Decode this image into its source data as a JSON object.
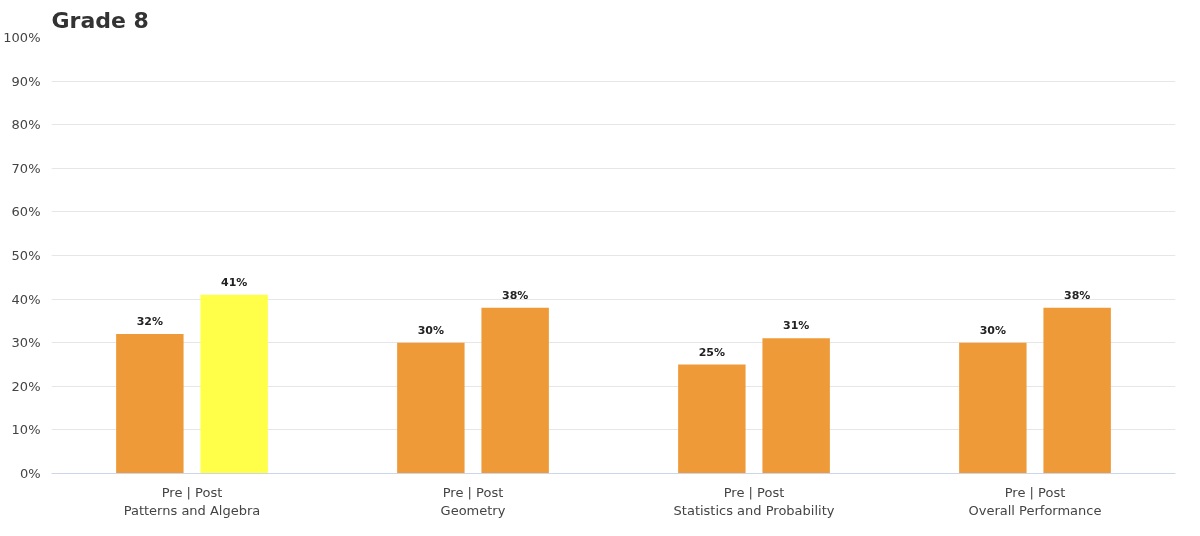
{
  "chart_data": {
    "type": "bar",
    "title": "Grade 8",
    "categories": [
      "Pre | Post\nPatterns and Algebra",
      "Pre | Post\nGeometry",
      "Pre | Post\nStatistics and Probability",
      "Pre | Post\nOverall Performance"
    ],
    "series": [
      {
        "color": "#ee9a38",
        "values": [
          32,
          30,
          25,
          30
        ],
        "value_labels": [
          "32%",
          "30%",
          "25%",
          "30%"
        ]
      },
      {
        "colors": [
          "#ffff4a",
          "#ee9a38",
          "#ee9a38",
          "#ee9a38"
        ],
        "values": [
          41,
          38,
          31,
          38
        ],
        "value_labels": [
          "41%",
          "38%",
          "31%",
          "38%"
        ]
      }
    ],
    "ylim": [
      0,
      100
    ],
    "yticks": [
      {
        "value": 0,
        "label": "0%"
      },
      {
        "value": 10,
        "label": "10%"
      },
      {
        "value": 20,
        "label": "20%"
      },
      {
        "value": 30,
        "label": "30%"
      },
      {
        "value": 40,
        "label": "40%"
      },
      {
        "value": 50,
        "label": "50%"
      },
      {
        "value": 60,
        "label": "60%"
      },
      {
        "value": 70,
        "label": "70%"
      },
      {
        "value": 80,
        "label": "80%"
      },
      {
        "value": 90,
        "label": "90%"
      },
      {
        "value": 100,
        "label": "100%"
      }
    ],
    "grid": "y"
  }
}
